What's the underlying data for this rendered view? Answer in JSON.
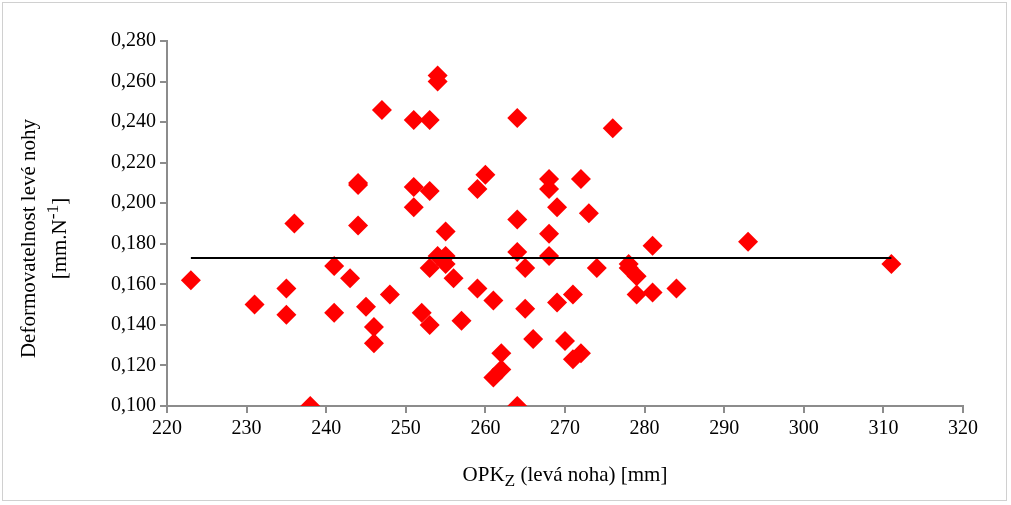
{
  "chart_data": {
    "type": "scatter",
    "xlabel": "OPK$_{Z}$ (levá noha) [mm]",
    "ylabel": "Deformovatelnost levé nohy [mm.N$^{-1}$]",
    "xlim": [
      220,
      320
    ],
    "xticks": [
      220,
      230,
      240,
      250,
      260,
      270,
      280,
      290,
      300,
      310,
      320
    ],
    "ylim": [
      0.1,
      0.28
    ],
    "yticks": [
      {
        "value": 0.1,
        "label": "0,100"
      },
      {
        "value": 0.12,
        "label": "0,120"
      },
      {
        "value": 0.14,
        "label": "0,140"
      },
      {
        "value": 0.16,
        "label": "0,160"
      },
      {
        "value": 0.18,
        "label": "0,180"
      },
      {
        "value": 0.2,
        "label": "0,200"
      },
      {
        "value": 0.22,
        "label": "0,220"
      },
      {
        "value": 0.24,
        "label": "0,240"
      },
      {
        "value": 0.26,
        "label": "0,260"
      },
      {
        "value": 0.28,
        "label": "0,280"
      }
    ],
    "grid": false,
    "series": [
      {
        "type": "scatter",
        "color": "#ff0000",
        "marker": "diamond",
        "x": [
          223,
          231,
          235,
          235,
          236,
          238,
          241,
          241,
          243,
          244,
          244,
          244,
          245,
          246,
          246,
          247,
          248,
          251,
          251,
          251,
          252,
          253,
          253,
          253,
          253,
          254,
          254,
          254,
          255,
          255,
          255,
          256,
          257,
          259,
          259,
          260,
          261,
          261,
          262,
          262,
          264,
          264,
          264,
          264,
          265,
          265,
          266,
          268,
          268,
          268,
          268,
          269,
          269,
          270,
          271,
          271,
          272,
          272,
          273,
          274,
          276,
          278,
          278,
          279,
          279,
          281,
          281,
          284,
          293,
          311
        ],
        "values": [
          0.162,
          0.15,
          0.158,
          0.145,
          0.19,
          0.1,
          0.169,
          0.146,
          0.163,
          0.209,
          0.21,
          0.189,
          0.149,
          0.139,
          0.131,
          0.246,
          0.155,
          0.241,
          0.208,
          0.198,
          0.146,
          0.241,
          0.206,
          0.168,
          0.14,
          0.263,
          0.26,
          0.174,
          0.186,
          0.174,
          0.17,
          0.163,
          0.142,
          0.207,
          0.158,
          0.214,
          0.152,
          0.114,
          0.126,
          0.118,
          0.242,
          0.192,
          0.176,
          0.1,
          0.168,
          0.148,
          0.133,
          0.212,
          0.207,
          0.185,
          0.174,
          0.198,
          0.151,
          0.132,
          0.155,
          0.123,
          0.212,
          0.126,
          0.195,
          0.168,
          0.237,
          0.17,
          0.168,
          0.164,
          0.155,
          0.179,
          0.156,
          0.158,
          0.181,
          0.17
        ]
      },
      {
        "type": "line",
        "color": "#000000",
        "marker": "none",
        "x": [
          223,
          311
        ],
        "values": [
          0.173,
          0.173
        ]
      }
    ]
  }
}
